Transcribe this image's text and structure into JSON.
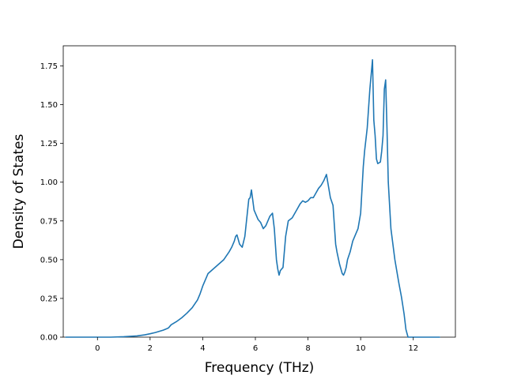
{
  "chart_data": {
    "type": "line",
    "title": "",
    "xlabel": "Frequency (THz)",
    "ylabel": "Density of States",
    "xlim": [
      -1.3,
      13.6
    ],
    "ylim": [
      0.0,
      1.88
    ],
    "x_ticks": [
      0,
      2,
      4,
      6,
      8,
      10,
      12
    ],
    "y_ticks": [
      0.0,
      0.25,
      0.5,
      0.75,
      1.0,
      1.25,
      1.5,
      1.75
    ],
    "x_tick_labels": [
      "0",
      "2",
      "4",
      "6",
      "8",
      "10",
      "12"
    ],
    "y_tick_labels": [
      "0.00",
      "0.25",
      "0.50",
      "0.75",
      "1.00",
      "1.25",
      "1.50",
      "1.75"
    ],
    "grid": false,
    "line_color": "#1f77b4",
    "series": [
      {
        "x": [
          -1.2,
          -0.5,
          0.0,
          0.5,
          1.0,
          1.5,
          1.8,
          2.0,
          2.2,
          2.5,
          2.6,
          2.7,
          2.8,
          3.0,
          3.2,
          3.4,
          3.6,
          3.8,
          3.9,
          4.0,
          4.05,
          4.2,
          4.4,
          4.6,
          4.8,
          5.0,
          5.1,
          5.2,
          5.25,
          5.3,
          5.4,
          5.5,
          5.6,
          5.65,
          5.75,
          5.8,
          5.85,
          5.95,
          6.1,
          6.2,
          6.3,
          6.4,
          6.5,
          6.55,
          6.65,
          6.72,
          6.8,
          6.85,
          6.9,
          6.95,
          7.05,
          7.15,
          7.25,
          7.4,
          7.5,
          7.6,
          7.7,
          7.8,
          7.9,
          8.0,
          8.1,
          8.2,
          8.3,
          8.4,
          8.5,
          8.6,
          8.7,
          8.8,
          8.85,
          8.95,
          9.05,
          9.1,
          9.2,
          9.3,
          9.35,
          9.4,
          9.45,
          9.5,
          9.6,
          9.7,
          9.8,
          9.9,
          10.0,
          10.1,
          10.15,
          10.25,
          10.35,
          10.45,
          10.5,
          10.55,
          10.6,
          10.65,
          10.75,
          10.8,
          10.85,
          10.9,
          10.95,
          11.0,
          11.05,
          11.15,
          11.3,
          11.45,
          11.55,
          11.65,
          11.72,
          11.8,
          12.0,
          12.5,
          13.0
        ],
        "y": [
          0.0,
          0.0,
          0.0,
          0.0,
          0.003,
          0.008,
          0.015,
          0.022,
          0.03,
          0.045,
          0.052,
          0.06,
          0.08,
          0.1,
          0.125,
          0.155,
          0.19,
          0.24,
          0.28,
          0.33,
          0.35,
          0.41,
          0.44,
          0.47,
          0.5,
          0.55,
          0.58,
          0.62,
          0.65,
          0.66,
          0.6,
          0.58,
          0.65,
          0.73,
          0.89,
          0.9,
          0.95,
          0.82,
          0.76,
          0.74,
          0.7,
          0.72,
          0.76,
          0.78,
          0.8,
          0.7,
          0.5,
          0.44,
          0.4,
          0.43,
          0.45,
          0.65,
          0.75,
          0.77,
          0.8,
          0.83,
          0.86,
          0.88,
          0.87,
          0.88,
          0.9,
          0.9,
          0.93,
          0.96,
          0.98,
          1.01,
          1.05,
          0.95,
          0.9,
          0.85,
          0.6,
          0.55,
          0.47,
          0.41,
          0.4,
          0.42,
          0.45,
          0.5,
          0.55,
          0.62,
          0.66,
          0.7,
          0.8,
          1.1,
          1.2,
          1.35,
          1.6,
          1.79,
          1.4,
          1.3,
          1.15,
          1.12,
          1.13,
          1.2,
          1.3,
          1.6,
          1.66,
          1.35,
          1.0,
          0.7,
          0.5,
          0.35,
          0.26,
          0.15,
          0.05,
          0.0,
          0.0,
          0.0,
          0.0
        ]
      }
    ]
  }
}
